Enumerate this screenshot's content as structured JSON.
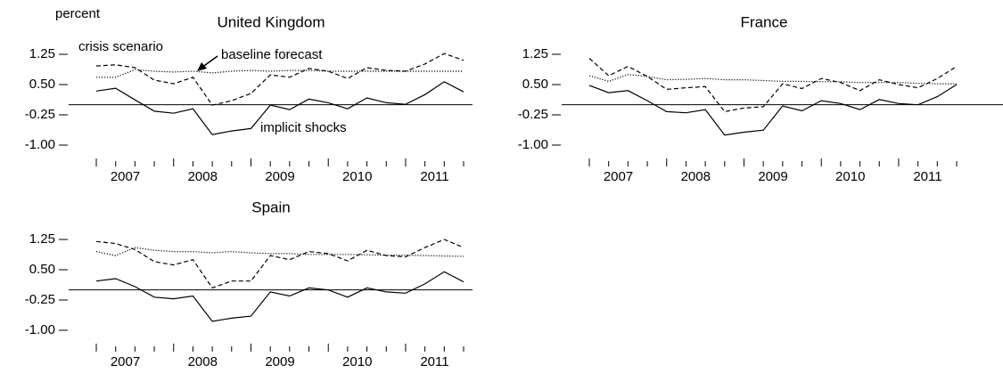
{
  "chart_data": [
    {
      "type": "line",
      "title": "United Kingdom",
      "annotations": [
        "percent"
      ],
      "x": [
        2007,
        2007.25,
        2007.5,
        2007.75,
        2008,
        2008.25,
        2008.5,
        2008.75,
        2009,
        2009.25,
        2009.5,
        2009.75,
        2010,
        2010.25,
        2010.5,
        2010.75,
        2011,
        2011.25,
        2011.5,
        2011.75
      ],
      "xticks": [
        {
          "value": 2007.375,
          "label": "2007"
        },
        {
          "value": 2008.375,
          "label": "2008"
        },
        {
          "value": 2009.375,
          "label": "2009"
        },
        {
          "value": 2010.375,
          "label": "2010"
        },
        {
          "value": 2011.375,
          "label": "2011"
        }
      ],
      "ylim": [
        -1.05,
        1.3
      ],
      "yticks": [
        1.25,
        {
          "value": 0.5,
          "label": "0.50"
        },
        -0.25,
        {
          "value": -1,
          "label": "-1.00"
        }
      ],
      "series": [
        {
          "name": "crisis scenario",
          "style": "dashed",
          "color": "#000000",
          "values": [
            0.96,
            0.99,
            0.92,
            0.61,
            0.52,
            0.68,
            -0.01,
            0.1,
            0.28,
            0.74,
            0.68,
            0.9,
            0.83,
            0.65,
            0.92,
            0.85,
            0.83,
            1.01,
            1.27,
            1.1
          ]
        },
        {
          "name": "baseline forecast",
          "style": "dotted",
          "color": "#000000",
          "values": [
            0.68,
            0.68,
            0.87,
            0.83,
            0.81,
            0.83,
            0.79,
            0.83,
            0.85,
            0.83,
            0.85,
            0.85,
            0.83,
            0.83,
            0.83,
            0.83,
            0.83,
            0.83,
            0.83,
            0.83
          ]
        },
        {
          "name": "implicit shocks",
          "style": "solid",
          "color": "#000000",
          "values": [
            0.34,
            0.41,
            0.12,
            -0.16,
            -0.21,
            -0.1,
            -0.74,
            -0.65,
            -0.59,
            -0.01,
            -0.12,
            0.14,
            0.05,
            -0.1,
            0.17,
            0.05,
            0.01,
            0.25,
            0.57,
            0.32
          ]
        }
      ]
    },
    {
      "type": "line",
      "title": "France",
      "x": [
        2007,
        2007.25,
        2007.5,
        2007.75,
        2008,
        2008.25,
        2008.5,
        2008.75,
        2009,
        2009.25,
        2009.5,
        2009.75,
        2010,
        2010.25,
        2010.5,
        2010.75,
        2011,
        2011.25,
        2011.5,
        2011.75
      ],
      "xticks": [
        {
          "value": 2007.375,
          "label": "2007"
        },
        {
          "value": 2008.375,
          "label": "2008"
        },
        {
          "value": 2009.375,
          "label": "2009"
        },
        {
          "value": 2010.375,
          "label": "2010"
        },
        {
          "value": 2011.375,
          "label": "2011"
        }
      ],
      "ylim": [
        -1.05,
        1.3
      ],
      "yticks": [
        1.25,
        {
          "value": 0.5,
          "label": "0.50"
        },
        -0.25,
        {
          "value": -1,
          "label": "-1.00"
        }
      ],
      "series": [
        {
          "style": "dashed",
          "color": "#000000",
          "values": [
            1.15,
            0.72,
            0.95,
            0.7,
            0.38,
            0.42,
            0.45,
            -0.17,
            -0.08,
            -0.05,
            0.52,
            0.4,
            0.65,
            0.55,
            0.35,
            0.62,
            0.5,
            0.42,
            0.65,
            0.95
          ]
        },
        {
          "style": "dotted",
          "color": "#000000",
          "values": [
            0.72,
            0.58,
            0.75,
            0.7,
            0.62,
            0.63,
            0.65,
            0.62,
            0.62,
            0.6,
            0.58,
            0.58,
            0.57,
            0.57,
            0.55,
            0.55,
            0.55,
            0.53,
            0.52,
            0.52
          ]
        },
        {
          "style": "solid",
          "color": "#000000",
          "values": [
            0.48,
            0.3,
            0.35,
            0.1,
            -0.17,
            -0.2,
            -0.12,
            -0.75,
            -0.68,
            -0.63,
            -0.03,
            -0.15,
            0.1,
            0.03,
            -0.12,
            0.13,
            0.03,
            0.0,
            0.2,
            0.5
          ]
        }
      ]
    },
    {
      "type": "line",
      "title": "Spain",
      "x": [
        2007,
        2007.25,
        2007.5,
        2007.75,
        2008,
        2008.25,
        2008.5,
        2008.75,
        2009,
        2009.25,
        2009.5,
        2009.75,
        2010,
        2010.25,
        2010.5,
        2010.75,
        2011,
        2011.25,
        2011.5,
        2011.75
      ],
      "xticks": [
        {
          "value": 2007.375,
          "label": "2007"
        },
        {
          "value": 2008.375,
          "label": "2008"
        },
        {
          "value": 2009.375,
          "label": "2009"
        },
        {
          "value": 2010.375,
          "label": "2010"
        },
        {
          "value": 2011.375,
          "label": "2011"
        }
      ],
      "ylim": [
        -1.05,
        1.3
      ],
      "yticks": [
        1.25,
        {
          "value": 0.5,
          "label": "0.50"
        },
        -0.25,
        {
          "value": -1,
          "label": "-1.00"
        }
      ],
      "series": [
        {
          "style": "dashed",
          "color": "#000000",
          "values": [
            1.2,
            1.15,
            1.0,
            0.7,
            0.62,
            0.75,
            0.05,
            0.22,
            0.22,
            0.85,
            0.75,
            0.95,
            0.9,
            0.72,
            0.98,
            0.85,
            0.82,
            1.05,
            1.25,
            1.05
          ]
        },
        {
          "style": "dotted",
          "color": "#000000",
          "values": [
            0.95,
            0.85,
            1.05,
            0.98,
            0.95,
            0.95,
            0.92,
            0.95,
            0.92,
            0.9,
            0.9,
            0.88,
            0.88,
            0.88,
            0.87,
            0.86,
            0.86,
            0.85,
            0.84,
            0.83
          ]
        },
        {
          "style": "solid",
          "color": "#000000",
          "values": [
            0.22,
            0.28,
            0.08,
            -0.18,
            -0.22,
            -0.15,
            -0.78,
            -0.7,
            -0.65,
            -0.05,
            -0.15,
            0.05,
            0.0,
            -0.18,
            0.05,
            -0.05,
            -0.08,
            0.15,
            0.45,
            0.2
          ]
        }
      ]
    }
  ]
}
